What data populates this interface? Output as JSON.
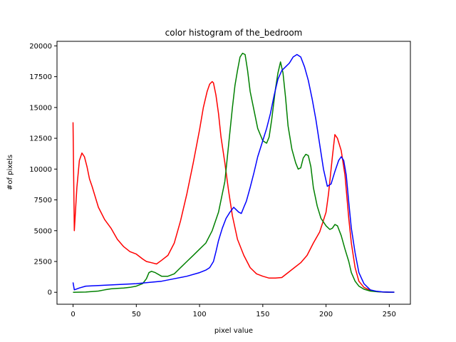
{
  "chart_data": {
    "type": "line",
    "title": "color histogram of the_bedroom",
    "xlabel": "pixel value",
    "ylabel": "#of pixels",
    "xlim": [
      -12.7,
      266.7
    ],
    "ylim": [
      -970,
      20370
    ],
    "xticks": [
      0,
      50,
      100,
      150,
      200,
      250
    ],
    "yticks": [
      0,
      2500,
      5000,
      7500,
      10000,
      12500,
      15000,
      17500,
      20000
    ],
    "grid": false,
    "series": [
      {
        "color": "#ff0000",
        "x": [
          0,
          1,
          3,
          5,
          7,
          9,
          11,
          13,
          15,
          20,
          25,
          30,
          35,
          40,
          45,
          50,
          55,
          58,
          62,
          66,
          70,
          75,
          80,
          85,
          90,
          95,
          100,
          103,
          106,
          108,
          110,
          111,
          113,
          115,
          117,
          120,
          123,
          126,
          130,
          135,
          140,
          145,
          150,
          155,
          160,
          165,
          170,
          175,
          180,
          185,
          190,
          195,
          200,
          202,
          205,
          207,
          209,
          212,
          215,
          218,
          220,
          223,
          226,
          230,
          235,
          240,
          245,
          250,
          254
        ],
        "y": [
          13800,
          5000,
          8500,
          10700,
          11300,
          11000,
          10200,
          9200,
          8600,
          6900,
          5900,
          5200,
          4300,
          3700,
          3300,
          3100,
          2700,
          2500,
          2400,
          2300,
          2600,
          3000,
          4000,
          5800,
          8000,
          10500,
          13200,
          15000,
          16300,
          16900,
          17100,
          17000,
          16000,
          14500,
          12600,
          10500,
          8200,
          6200,
          4300,
          3000,
          2000,
          1500,
          1300,
          1150,
          1150,
          1200,
          1600,
          2000,
          2400,
          3000,
          4000,
          4900,
          6500,
          8000,
          11000,
          12800,
          12500,
          11500,
          9500,
          6000,
          4000,
          2000,
          900,
          400,
          150,
          60,
          20,
          10,
          5
        ]
      },
      {
        "color": "#008000",
        "x": [
          0,
          10,
          20,
          25,
          30,
          35,
          40,
          45,
          50,
          55,
          58,
          60,
          62,
          65,
          70,
          75,
          80,
          85,
          90,
          95,
          100,
          105,
          110,
          115,
          120,
          123,
          126,
          128,
          130,
          132,
          134,
          136,
          138,
          140,
          143,
          146,
          150,
          153,
          155,
          157,
          160,
          162,
          164,
          166,
          168,
          170,
          173,
          176,
          178,
          180,
          182,
          184,
          186,
          188,
          190,
          193,
          196,
          200,
          203,
          205,
          207,
          209,
          212,
          215,
          218,
          220,
          223,
          226,
          230,
          235,
          240,
          245,
          250,
          254
        ],
        "y": [
          0,
          20,
          100,
          200,
          280,
          320,
          350,
          400,
          500,
          700,
          1100,
          1600,
          1700,
          1600,
          1300,
          1300,
          1500,
          2000,
          2500,
          3000,
          3500,
          4000,
          5000,
          6500,
          9000,
          12000,
          15000,
          16800,
          18000,
          19100,
          19400,
          19300,
          18000,
          16300,
          14800,
          13300,
          12300,
          12100,
          12600,
          14000,
          16500,
          17800,
          18700,
          17800,
          15800,
          13500,
          11600,
          10500,
          10000,
          10100,
          10900,
          11200,
          11100,
          10200,
          8500,
          7000,
          6000,
          5400,
          5100,
          5200,
          5500,
          5400,
          4600,
          3500,
          2500,
          1600,
          900,
          500,
          250,
          100,
          50,
          20,
          10,
          5
        ]
      },
      {
        "color": "#0000ff",
        "x": [
          0,
          1,
          5,
          10,
          20,
          30,
          40,
          50,
          60,
          70,
          80,
          90,
          100,
          105,
          108,
          111,
          113,
          115,
          118,
          121,
          124,
          127,
          129,
          131,
          133,
          135,
          137,
          140,
          143,
          146,
          150,
          153,
          156,
          159,
          162,
          165,
          168,
          171,
          174,
          177,
          180,
          183,
          186,
          189,
          192,
          195,
          198,
          201,
          204,
          207,
          210,
          212,
          214,
          216,
          218,
          220,
          223,
          226,
          230,
          235,
          240,
          245,
          250,
          254
        ],
        "y": [
          800,
          200,
          350,
          500,
          550,
          600,
          650,
          700,
          800,
          900,
          1100,
          1300,
          1600,
          1800,
          2000,
          2500,
          3300,
          4200,
          5200,
          6000,
          6500,
          6900,
          6700,
          6500,
          6400,
          6900,
          7400,
          8500,
          9700,
          11000,
          12300,
          13300,
          14500,
          16000,
          17300,
          18000,
          18300,
          18600,
          19100,
          19300,
          19100,
          18300,
          17200,
          15700,
          14000,
          12000,
          10000,
          8600,
          8800,
          9800,
          10700,
          11000,
          10700,
          9500,
          7300,
          5200,
          3200,
          1600,
          700,
          200,
          80,
          30,
          15,
          10
        ]
      }
    ]
  }
}
